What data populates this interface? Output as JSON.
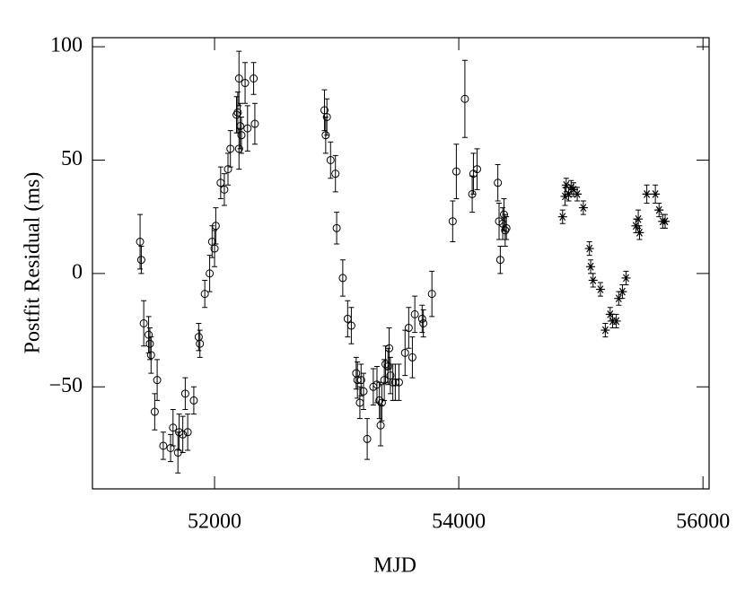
{
  "chart_data": {
    "type": "scatter",
    "xlabel": "MJD",
    "ylabel": "Postfit Residual (ms)",
    "xlim": [
      51000,
      56050
    ],
    "ylim": [
      -95,
      104
    ],
    "xticks": [
      52000,
      54000,
      56000
    ],
    "yticks": [
      {
        "value": -50,
        "label": "−50"
      },
      0,
      50,
      100
    ],
    "series": [
      {
        "color": "#000000",
        "marker": "circle",
        "x": [
          51390,
          51400,
          51420,
          51460,
          51470,
          51480,
          51510,
          51530,
          51580,
          51640,
          51660,
          51700,
          51710,
          51740,
          51760,
          51780,
          51830,
          51870,
          51880,
          51920,
          51960,
          51980,
          52000,
          52010,
          52050,
          52080,
          52110,
          52130,
          52180,
          52190,
          52200,
          52200,
          52210,
          52220,
          52250,
          52270,
          52320,
          52330,
          52900,
          52910,
          52920,
          52950,
          52990,
          53000,
          53050,
          53090,
          53120,
          53160,
          53170,
          53190,
          53200,
          53220,
          53250,
          53300,
          53330,
          53350,
          53360,
          53370,
          53390,
          53400,
          53420,
          53430,
          53440,
          53460,
          53480,
          53510,
          53560,
          53590,
          53620,
          53640,
          53700,
          53710,
          53780,
          53950,
          53980,
          54050,
          54110,
          54120,
          54150,
          54320,
          54330,
          54340,
          54360,
          54370,
          54380,
          54390
        ],
        "values": [
          14,
          6,
          -22,
          -27,
          -31,
          -36,
          -61,
          -47,
          -76,
          -77,
          -68,
          -79,
          -70,
          -71,
          -53,
          -70,
          -56,
          -28,
          -31,
          -9,
          0,
          14,
          11,
          21,
          40,
          37,
          46,
          55,
          70,
          71,
          86,
          55,
          65,
          61,
          84,
          64,
          86,
          66,
          72,
          61,
          69,
          50,
          44,
          20,
          -2,
          -20,
          -23,
          -44,
          -47,
          -57,
          -47,
          -52,
          -73,
          -50,
          -49,
          -56,
          -67,
          -57,
          -47,
          -40,
          -41,
          -33,
          -45,
          -48,
          -48,
          -48,
          -35,
          -24,
          -37,
          -18,
          -20,
          -22,
          -9,
          23,
          45,
          77,
          35,
          44,
          46,
          40,
          23,
          6,
          22,
          26,
          19,
          20
        ],
        "errors": [
          12,
          6,
          10,
          8,
          7,
          8,
          8,
          9,
          6,
          6,
          8,
          9,
          8,
          8,
          7,
          8,
          6,
          6,
          6,
          6,
          8,
          7,
          8,
          8,
          7,
          7,
          7,
          8,
          8,
          9,
          12,
          9,
          10,
          8,
          9,
          10,
          7,
          9,
          9,
          8,
          8,
          8,
          8,
          7,
          8,
          8,
          8,
          7,
          8,
          7,
          7,
          8,
          9,
          8,
          8,
          8,
          9,
          8,
          9,
          8,
          8,
          9,
          8,
          8,
          8,
          8,
          10,
          9,
          9,
          8,
          6,
          6,
          10,
          9,
          12,
          17,
          8,
          9,
          9,
          8,
          8,
          6,
          7,
          7,
          7,
          5
        ]
      },
      {
        "color": "#000000",
        "marker": "asterisk",
        "x": [
          54850,
          54870,
          54880,
          54900,
          54920,
          54940,
          54970,
          55020,
          55070,
          55080,
          55100,
          55160,
          55200,
          55240,
          55260,
          55290,
          55310,
          55340,
          55370,
          55450,
          55470,
          55480,
          55540,
          55610,
          55640,
          55670,
          55690
        ],
        "values": [
          25,
          34,
          39,
          35,
          38,
          37,
          35,
          29,
          11,
          3,
          -3,
          -7,
          -25,
          -18,
          -21,
          -21,
          -11,
          -8,
          -2,
          21,
          24,
          18,
          35,
          35,
          28,
          23,
          23
        ],
        "errors": [
          3,
          4,
          3,
          3,
          3,
          3,
          3,
          3,
          3,
          3,
          3,
          3,
          3,
          3,
          3,
          3,
          3,
          3,
          3,
          3,
          4,
          3,
          4,
          4,
          3,
          3,
          3
        ]
      }
    ]
  }
}
